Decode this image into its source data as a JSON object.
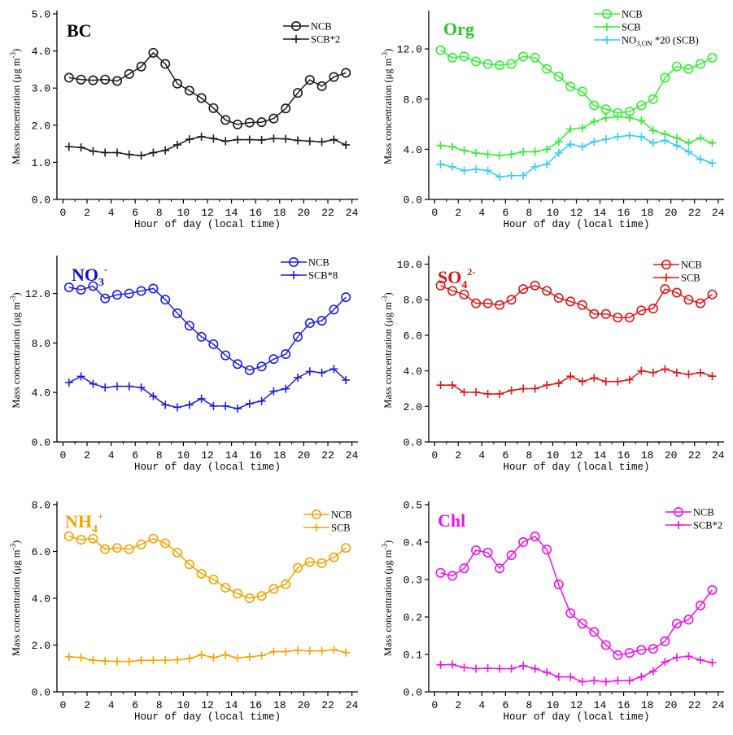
{
  "chart_data": [
    {
      "type": "line",
      "species_label": {
        "main": "BC",
        "sub": "",
        "sup": "",
        "color": "#000000"
      },
      "xlabel": "Hour of day (local time)",
      "ylabel": "Mass concentration (μg m⁻³)",
      "ylabel_parts": {
        "main": "Mass concentration (μg m",
        "sup": "-3",
        "end": ")"
      },
      "xlim": [
        -0.5,
        24.5
      ],
      "ylim": [
        0,
        5.0
      ],
      "xticks": [
        0,
        2,
        4,
        6,
        8,
        10,
        12,
        14,
        16,
        18,
        20,
        22,
        24
      ],
      "yticks": [
        0.0,
        1.0,
        2.0,
        3.0,
        4.0,
        5.0
      ],
      "ytick_labels": [
        "0.0",
        "1.0",
        "2.0",
        "3.0",
        "4.0",
        "5.0"
      ],
      "series": [
        {
          "name": "NCB",
          "marker": "circle",
          "color": "#1a1a1a",
          "x": [
            0.5,
            1.5,
            2.5,
            3.5,
            4.5,
            5.5,
            6.5,
            7.5,
            8.5,
            9.5,
            10.5,
            11.5,
            12.5,
            13.5,
            14.5,
            15.5,
            16.5,
            17.5,
            18.5,
            19.5,
            20.5,
            21.5,
            22.5,
            23.5
          ],
          "values": [
            3.28,
            3.23,
            3.21,
            3.23,
            3.19,
            3.38,
            3.58,
            3.95,
            3.65,
            3.12,
            2.93,
            2.73,
            2.46,
            2.14,
            2.02,
            2.07,
            2.08,
            2.18,
            2.45,
            2.87,
            3.22,
            3.05,
            3.3,
            3.41
          ]
        },
        {
          "name": "SCB*2",
          "marker": "plus",
          "color": "#1a1a1a",
          "x": [
            0.5,
            1.5,
            2.5,
            3.5,
            4.5,
            5.5,
            6.5,
            7.5,
            8.5,
            9.5,
            10.5,
            11.5,
            12.5,
            13.5,
            14.5,
            15.5,
            16.5,
            17.5,
            18.5,
            19.5,
            20.5,
            21.5,
            22.5,
            23.5
          ],
          "values": [
            1.42,
            1.4,
            1.3,
            1.26,
            1.26,
            1.21,
            1.18,
            1.26,
            1.32,
            1.47,
            1.62,
            1.69,
            1.64,
            1.57,
            1.61,
            1.61,
            1.6,
            1.64,
            1.63,
            1.59,
            1.57,
            1.55,
            1.61,
            1.47
          ]
        }
      ]
    },
    {
      "type": "line",
      "species_label": {
        "main": "Org",
        "sub": "",
        "sup": "",
        "color": "#22cc22"
      },
      "xlabel": "Hour of day (local time)",
      "ylabel": "Mass concentration (μg m⁻³)",
      "ylabel_parts": {
        "main": "Mass concentration (μg m",
        "sup": "-3",
        "end": ")"
      },
      "xlim": [
        -0.5,
        24.5
      ],
      "ylim": [
        0,
        14.8
      ],
      "xticks": [
        0,
        2,
        4,
        6,
        8,
        10,
        12,
        14,
        16,
        18,
        20,
        22,
        24
      ],
      "yticks": [
        0,
        4,
        8,
        12
      ],
      "ytick_labels": [
        "0.0",
        "4.0",
        "8.0",
        "12.0"
      ],
      "series": [
        {
          "name": "NCB",
          "marker": "circle",
          "color": "#33ee33",
          "x": [
            0.5,
            1.5,
            2.5,
            3.5,
            4.5,
            5.5,
            6.5,
            7.5,
            8.5,
            9.5,
            10.5,
            11.5,
            12.5,
            13.5,
            14.5,
            15.5,
            16.5,
            17.5,
            18.5,
            19.5,
            20.5,
            21.5,
            22.5,
            23.5
          ],
          "values": [
            11.9,
            11.3,
            11.4,
            11.0,
            10.8,
            10.7,
            10.8,
            11.4,
            11.3,
            10.4,
            9.8,
            9.0,
            8.6,
            7.5,
            7.2,
            6.9,
            7.0,
            7.5,
            8.0,
            9.7,
            10.6,
            10.4,
            10.8,
            11.3
          ]
        },
        {
          "name": "SCB",
          "marker": "plus",
          "color": "#33ee33",
          "x": [
            0.5,
            1.5,
            2.5,
            3.5,
            4.5,
            5.5,
            6.5,
            7.5,
            8.5,
            9.5,
            10.5,
            11.5,
            12.5,
            13.5,
            14.5,
            15.5,
            16.5,
            17.5,
            18.5,
            19.5,
            20.5,
            21.5,
            22.5,
            23.5
          ],
          "values": [
            4.3,
            4.2,
            3.9,
            3.7,
            3.6,
            3.5,
            3.6,
            3.8,
            3.8,
            4.0,
            4.6,
            5.6,
            5.7,
            6.2,
            6.5,
            6.6,
            6.5,
            6.3,
            5.5,
            5.2,
            4.9,
            4.5,
            4.9,
            4.5
          ]
        },
        {
          "name": "NO3,ON*20 (SCB)",
          "label_parts": {
            "main": "NO",
            "sub": "3,ON",
            "rest": " *20 (SCB)"
          },
          "marker": "plus",
          "color": "#33ccff",
          "x": [
            0.5,
            1.5,
            2.5,
            3.5,
            4.5,
            5.5,
            6.5,
            7.5,
            8.5,
            9.5,
            10.5,
            11.5,
            12.5,
            13.5,
            14.5,
            15.5,
            16.5,
            17.5,
            18.5,
            19.5,
            20.5,
            21.5,
            22.5,
            23.5
          ],
          "values": [
            2.8,
            2.6,
            2.3,
            2.4,
            2.3,
            1.8,
            1.9,
            1.9,
            2.6,
            2.8,
            3.7,
            4.4,
            4.2,
            4.6,
            4.8,
            5.0,
            5.1,
            5.0,
            4.5,
            4.7,
            4.3,
            3.8,
            3.2,
            2.9
          ]
        }
      ]
    },
    {
      "type": "line",
      "species_label": {
        "main": "NO",
        "sub": "3",
        "sup": "-",
        "color": "#1111cc"
      },
      "xlabel": "Hour of day (local time)",
      "ylabel": "Mass concentration (μg m⁻³)",
      "ylabel_parts": {
        "main": "Mass concentration (μg m",
        "sup": "-3",
        "end": ")"
      },
      "xlim": [
        -0.5,
        24.5
      ],
      "ylim": [
        0,
        14.8
      ],
      "xticks": [
        0,
        2,
        4,
        6,
        8,
        10,
        12,
        14,
        16,
        18,
        20,
        22,
        24
      ],
      "yticks": [
        0,
        4,
        8,
        12
      ],
      "ytick_labels": [
        "0.0",
        "4.0",
        "8.0",
        "12.0"
      ],
      "series": [
        {
          "name": "NCB",
          "marker": "circle",
          "color": "#1f1fe0",
          "x": [
            0.5,
            1.5,
            2.5,
            3.5,
            4.5,
            5.5,
            6.5,
            7.5,
            8.5,
            9.5,
            10.5,
            11.5,
            12.5,
            13.5,
            14.5,
            15.5,
            16.5,
            17.5,
            18.5,
            19.5,
            20.5,
            21.5,
            22.5,
            23.5
          ],
          "values": [
            12.5,
            12.3,
            12.6,
            11.6,
            11.9,
            12.0,
            12.2,
            12.4,
            11.5,
            10.4,
            9.4,
            8.5,
            7.9,
            7.0,
            6.3,
            5.8,
            6.1,
            6.7,
            7.1,
            8.5,
            9.6,
            9.8,
            10.7,
            11.7
          ]
        },
        {
          "name": "SCB*8",
          "marker": "plus",
          "color": "#1f1fe0",
          "x": [
            0.5,
            1.5,
            2.5,
            3.5,
            4.5,
            5.5,
            6.5,
            7.5,
            8.5,
            9.5,
            10.5,
            11.5,
            12.5,
            13.5,
            14.5,
            15.5,
            16.5,
            17.5,
            18.5,
            19.5,
            20.5,
            21.5,
            22.5,
            23.5
          ],
          "values": [
            4.8,
            5.3,
            4.7,
            4.4,
            4.5,
            4.5,
            4.4,
            3.7,
            3.0,
            2.8,
            3.0,
            3.5,
            2.9,
            2.9,
            2.7,
            3.1,
            3.3,
            4.1,
            4.3,
            5.2,
            5.7,
            5.6,
            5.9,
            5.0
          ]
        }
      ]
    },
    {
      "type": "line",
      "species_label": {
        "main": "SO",
        "sub": "4",
        "sup": "2-",
        "color": "#dd1111"
      },
      "xlabel": "Hour of day (local time)",
      "ylabel": "Mass concentration (μg m⁻³)",
      "ylabel_parts": {
        "main": "Mass concentration (μg m",
        "sup": "-3",
        "end": ")"
      },
      "xlim": [
        -0.5,
        24.5
      ],
      "ylim": [
        0,
        10.3
      ],
      "xticks": [
        0,
        2,
        4,
        6,
        8,
        10,
        12,
        14,
        16,
        18,
        20,
        22,
        24
      ],
      "yticks": [
        0,
        2,
        4,
        6,
        8,
        10
      ],
      "ytick_labels": [
        "0.0",
        "2.0",
        "4.0",
        "6.0",
        "8.0",
        "10.0"
      ],
      "series": [
        {
          "name": "NCB",
          "marker": "circle",
          "color": "#e01515",
          "x": [
            0.5,
            1.5,
            2.5,
            3.5,
            4.5,
            5.5,
            6.5,
            7.5,
            8.5,
            9.5,
            10.5,
            11.5,
            12.5,
            13.5,
            14.5,
            15.5,
            16.5,
            17.5,
            18.5,
            19.5,
            20.5,
            21.5,
            22.5,
            23.5
          ],
          "values": [
            8.8,
            8.5,
            8.3,
            7.8,
            7.8,
            7.7,
            8.0,
            8.6,
            8.8,
            8.5,
            8.1,
            7.9,
            7.7,
            7.2,
            7.2,
            7.0,
            7.0,
            7.4,
            7.5,
            8.6,
            8.4,
            8.0,
            7.8,
            8.3
          ]
        },
        {
          "name": "SCB",
          "marker": "plus",
          "color": "#e01515",
          "x": [
            0.5,
            1.5,
            2.5,
            3.5,
            4.5,
            5.5,
            6.5,
            7.5,
            8.5,
            9.5,
            10.5,
            11.5,
            12.5,
            13.5,
            14.5,
            15.5,
            16.5,
            17.5,
            18.5,
            19.5,
            20.5,
            21.5,
            22.5,
            23.5
          ],
          "values": [
            3.2,
            3.2,
            2.8,
            2.8,
            2.7,
            2.7,
            2.9,
            3.0,
            3.0,
            3.2,
            3.3,
            3.7,
            3.4,
            3.6,
            3.4,
            3.4,
            3.5,
            4.0,
            3.9,
            4.1,
            3.9,
            3.8,
            3.9,
            3.7
          ]
        }
      ]
    },
    {
      "type": "line",
      "species_label": {
        "main": "NH",
        "sub": "4",
        "sup": "+",
        "color": "#f5a300"
      },
      "xlabel": "Hour of day (local time)",
      "ylabel": "Mass concentration (μg m⁻³)",
      "ylabel_parts": {
        "main": "Mass concentration (μg m",
        "sup": "-3",
        "end": ")"
      },
      "xlim": [
        -0.5,
        24.5
      ],
      "ylim": [
        0,
        8.0
      ],
      "xticks": [
        0,
        2,
        4,
        6,
        8,
        10,
        12,
        14,
        16,
        18,
        20,
        22,
        24
      ],
      "yticks": [
        0,
        2,
        4,
        6,
        8
      ],
      "ytick_labels": [
        "0.0",
        "2.0",
        "4.0",
        "6.0",
        "8.0"
      ],
      "series": [
        {
          "name": "NCB",
          "marker": "circle",
          "color": "#f5a300",
          "x": [
            0.5,
            1.5,
            2.5,
            3.5,
            4.5,
            5.5,
            6.5,
            7.5,
            8.5,
            9.5,
            10.5,
            11.5,
            12.5,
            13.5,
            14.5,
            15.5,
            16.5,
            17.5,
            18.5,
            19.5,
            20.5,
            21.5,
            22.5,
            23.5
          ],
          "values": [
            6.65,
            6.5,
            6.55,
            6.1,
            6.15,
            6.1,
            6.3,
            6.55,
            6.35,
            5.95,
            5.45,
            5.05,
            4.8,
            4.45,
            4.2,
            4.0,
            4.1,
            4.4,
            4.6,
            5.3,
            5.55,
            5.5,
            5.75,
            6.15
          ]
        },
        {
          "name": "SCB",
          "marker": "plus",
          "color": "#f5a300",
          "x": [
            0.5,
            1.5,
            2.5,
            3.5,
            4.5,
            5.5,
            6.5,
            7.5,
            8.5,
            9.5,
            10.5,
            11.5,
            12.5,
            13.5,
            14.5,
            15.5,
            16.5,
            17.5,
            18.5,
            19.5,
            20.5,
            21.5,
            22.5,
            23.5
          ],
          "values": [
            1.5,
            1.47,
            1.35,
            1.32,
            1.3,
            1.3,
            1.35,
            1.35,
            1.35,
            1.37,
            1.43,
            1.58,
            1.47,
            1.58,
            1.45,
            1.5,
            1.55,
            1.72,
            1.72,
            1.78,
            1.75,
            1.75,
            1.8,
            1.68
          ]
        }
      ]
    },
    {
      "type": "line",
      "species_label": {
        "main": "Chl",
        "sub": "",
        "sup": "",
        "color": "#ee11ee"
      },
      "xlabel": "Hour of day (local time)",
      "ylabel": "Mass concentration (μg m⁻³)",
      "ylabel_parts": {
        "main": "Mass concentration (μg m",
        "sup": "-3",
        "end": ")"
      },
      "xlim": [
        -0.5,
        24.5
      ],
      "ylim": [
        0,
        0.5
      ],
      "xticks": [
        0,
        2,
        4,
        6,
        8,
        10,
        12,
        14,
        16,
        18,
        20,
        22,
        24
      ],
      "yticks": [
        0.0,
        0.1,
        0.2,
        0.3,
        0.4,
        0.5
      ],
      "ytick_labels": [
        "0.0",
        "0.1",
        "0.2",
        "0.3",
        "0.4",
        "0.5"
      ],
      "series": [
        {
          "name": "NCB",
          "marker": "circle",
          "color": "#ee11ee",
          "x": [
            0.5,
            1.5,
            2.5,
            3.5,
            4.5,
            5.5,
            6.5,
            7.5,
            8.5,
            9.5,
            10.5,
            11.5,
            12.5,
            13.5,
            14.5,
            15.5,
            16.5,
            17.5,
            18.5,
            19.5,
            20.5,
            21.5,
            22.5,
            23.5
          ],
          "values": [
            0.318,
            0.31,
            0.33,
            0.378,
            0.372,
            0.33,
            0.365,
            0.4,
            0.415,
            0.38,
            0.287,
            0.21,
            0.182,
            0.16,
            0.125,
            0.098,
            0.104,
            0.112,
            0.115,
            0.135,
            0.182,
            0.193,
            0.231,
            0.272
          ]
        },
        {
          "name": "SCB*2",
          "marker": "plus",
          "color": "#ee11ee",
          "x": [
            0.5,
            1.5,
            2.5,
            3.5,
            4.5,
            5.5,
            6.5,
            7.5,
            8.5,
            9.5,
            10.5,
            11.5,
            12.5,
            13.5,
            14.5,
            15.5,
            16.5,
            17.5,
            18.5,
            19.5,
            20.5,
            21.5,
            22.5,
            23.5
          ],
          "values": [
            0.072,
            0.073,
            0.065,
            0.062,
            0.063,
            0.062,
            0.062,
            0.07,
            0.062,
            0.052,
            0.04,
            0.04,
            0.027,
            0.03,
            0.027,
            0.03,
            0.03,
            0.04,
            0.055,
            0.08,
            0.092,
            0.095,
            0.085,
            0.078
          ]
        }
      ]
    }
  ]
}
